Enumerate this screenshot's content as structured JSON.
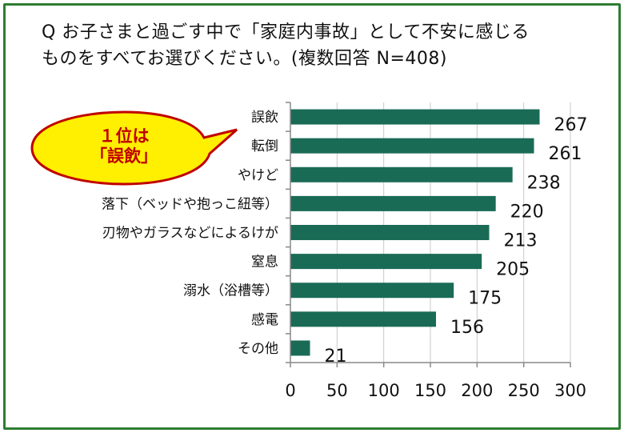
{
  "title": {
    "line1": "Q お子さまと過ごす中で「家庭内事故」として不安に感じる",
    "line2": "ものをすべてお選びください。(複数回答 N=408)"
  },
  "callout": {
    "line1": "１位は",
    "line2": "「誤飲」"
  },
  "colors": {
    "bar": "#1a6b56",
    "border": "#2e7d32",
    "callout_fill": "#ffef00",
    "callout_stroke": "#c00000",
    "callout_text": "#c00000"
  },
  "chart_data": {
    "type": "bar",
    "orientation": "horizontal",
    "categories": [
      "誤飲",
      "転倒",
      "やけど",
      "落下（ベッドや抱っこ紐等）",
      "刃物やガラスなどによるけが",
      "窒息",
      "溺水（浴槽等）",
      "感電",
      "その他"
    ],
    "values": [
      267,
      261,
      238,
      220,
      213,
      205,
      175,
      156,
      21
    ],
    "xlim": [
      0,
      300
    ],
    "xticks": [
      0,
      50,
      100,
      150,
      200,
      250,
      300
    ],
    "grid": true,
    "data_labels": true
  }
}
